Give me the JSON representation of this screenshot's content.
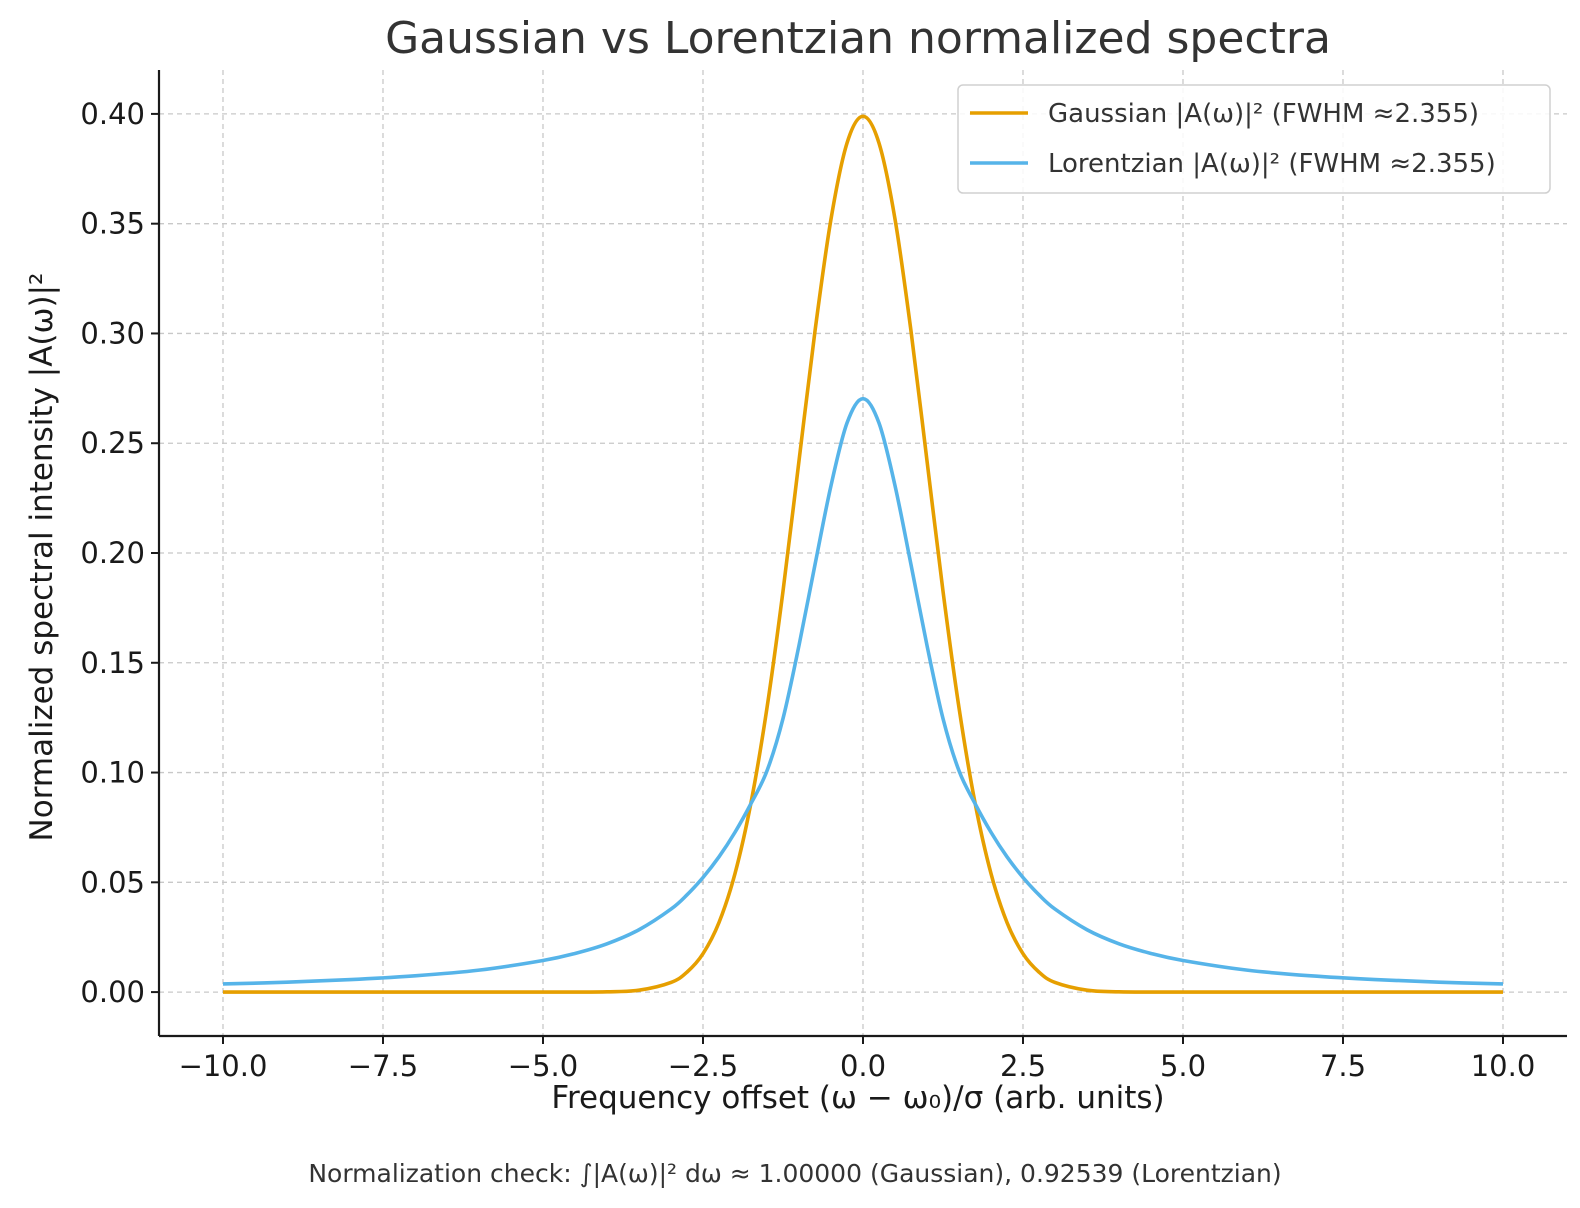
{
  "chart_data": {
    "type": "line",
    "title": "Gaussian vs Lorentzian normalized spectra",
    "xlabel": "Frequency offset (ω − ω₀)/σ (arb. units)",
    "ylabel": "Normalized spectral intensity |A(ω)|²",
    "xlim": [
      -11,
      11
    ],
    "ylim": [
      -0.02,
      0.42
    ],
    "grid": true,
    "legend_position": "top-right",
    "x_ticks": [
      -10.0,
      -7.5,
      -5.0,
      -2.5,
      0.0,
      2.5,
      5.0,
      7.5,
      10.0
    ],
    "x_tick_labels": [
      "−10.0",
      "−7.5",
      "−5.0",
      "−2.5",
      "0.0",
      "2.5",
      "5.0",
      "7.5",
      "10.0"
    ],
    "y_ticks": [
      0.0,
      0.05,
      0.1,
      0.15,
      0.2,
      0.25,
      0.3,
      0.35,
      0.4
    ],
    "y_tick_labels": [
      "0.00",
      "0.05",
      "0.10",
      "0.15",
      "0.20",
      "0.25",
      "0.30",
      "0.35",
      "0.40"
    ],
    "x": [
      -10.0,
      -9.0,
      -8.0,
      -7.0,
      -6.0,
      -5.0,
      -4.5,
      -4.0,
      -3.5,
      -3.0,
      -2.75,
      -2.5,
      -2.25,
      -2.0,
      -1.75,
      -1.5,
      -1.25,
      -1.0,
      -0.75,
      -0.5,
      -0.25,
      0.0,
      0.25,
      0.5,
      0.75,
      1.0,
      1.25,
      1.5,
      1.75,
      2.0,
      2.25,
      2.5,
      2.75,
      3.0,
      3.5,
      4.0,
      4.5,
      5.0,
      6.0,
      7.0,
      8.0,
      9.0,
      10.0
    ],
    "series": [
      {
        "name": "Gaussian |A(ω)|² (FWHM ≈2.355)",
        "color": "#E69F00",
        "values": [
          0.0,
          0.0,
          0.0,
          0.0,
          0.0,
          0.0,
          2e-05,
          0.00013,
          0.00087,
          0.0044,
          0.0091,
          0.0175,
          0.0317,
          0.054,
          0.0863,
          0.1295,
          0.1826,
          0.242,
          0.3011,
          0.3521,
          0.3867,
          0.3989,
          0.3867,
          0.3521,
          0.3011,
          0.242,
          0.1826,
          0.1295,
          0.0863,
          0.054,
          0.0317,
          0.0175,
          0.0091,
          0.0044,
          0.00087,
          0.00013,
          2e-05,
          0.0,
          0.0,
          0.0,
          0.0,
          0.0,
          0.0
        ]
      },
      {
        "name": "Lorentzian |A(ω)|² (FWHM ≈2.355)",
        "color": "#56B4E9",
        "values": [
          0.0037,
          0.0045,
          0.0057,
          0.0074,
          0.01,
          0.0144,
          0.0176,
          0.022,
          0.0284,
          0.0378,
          0.0443,
          0.0522,
          0.0616,
          0.0728,
          0.0859,
          0.1008,
          0.1246,
          0.1579,
          0.1947,
          0.2307,
          0.2592,
          0.2703,
          0.2592,
          0.2307,
          0.1947,
          0.1579,
          0.1246,
          0.1008,
          0.0859,
          0.0728,
          0.0616,
          0.0522,
          0.0443,
          0.0378,
          0.0284,
          0.022,
          0.0176,
          0.0144,
          0.01,
          0.0074,
          0.0057,
          0.0045,
          0.0037
        ]
      }
    ],
    "footnote": "Normalization check: ∫|A(ω)|² dω ≈ 1.00000 (Gaussian), 0.92539 (Lorentzian)"
  }
}
